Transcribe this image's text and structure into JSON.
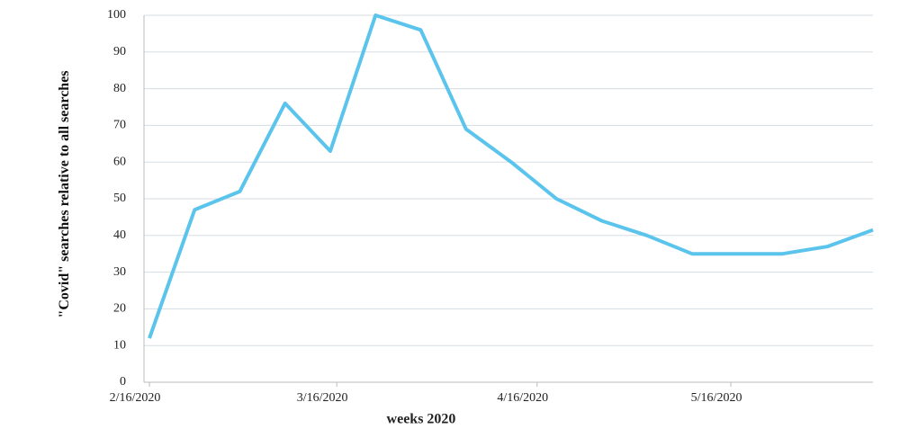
{
  "chart_data": {
    "type": "line",
    "x_label": "weeks 2020",
    "y_label": "\"Covid\" searches relative to all searches",
    "x": [
      "2020-02-16",
      "2020-02-23",
      "2020-03-01",
      "2020-03-08",
      "2020-03-15",
      "2020-03-22",
      "2020-03-29",
      "2020-04-05",
      "2020-04-12",
      "2020-04-19",
      "2020-04-26",
      "2020-05-03",
      "2020-05-10",
      "2020-05-17",
      "2020-05-24",
      "2020-05-31",
      "2020-06-07"
    ],
    "series": [
      {
        "name": "Covid",
        "color": "#5bc4ec",
        "values": [
          12,
          47,
          52,
          76,
          63,
          100,
          96,
          69,
          60,
          50,
          44,
          40,
          35,
          35,
          35,
          37,
          41.5
        ]
      }
    ],
    "xlim": [
      "2020-02-16",
      "2020-06-07"
    ],
    "xticks": [
      {
        "value": "2020-02-16",
        "label": "2/16/2020"
      },
      {
        "value": "2020-03-16",
        "label": "3/16/2020"
      },
      {
        "value": "2020-04-16",
        "label": "4/16/2020"
      },
      {
        "value": "2020-05-16",
        "label": "5/16/2020"
      }
    ],
    "ylim": [
      0,
      100
    ],
    "yticks": [
      0,
      10,
      20,
      30,
      40,
      50,
      60,
      70,
      80,
      90,
      100
    ],
    "grid": true
  }
}
